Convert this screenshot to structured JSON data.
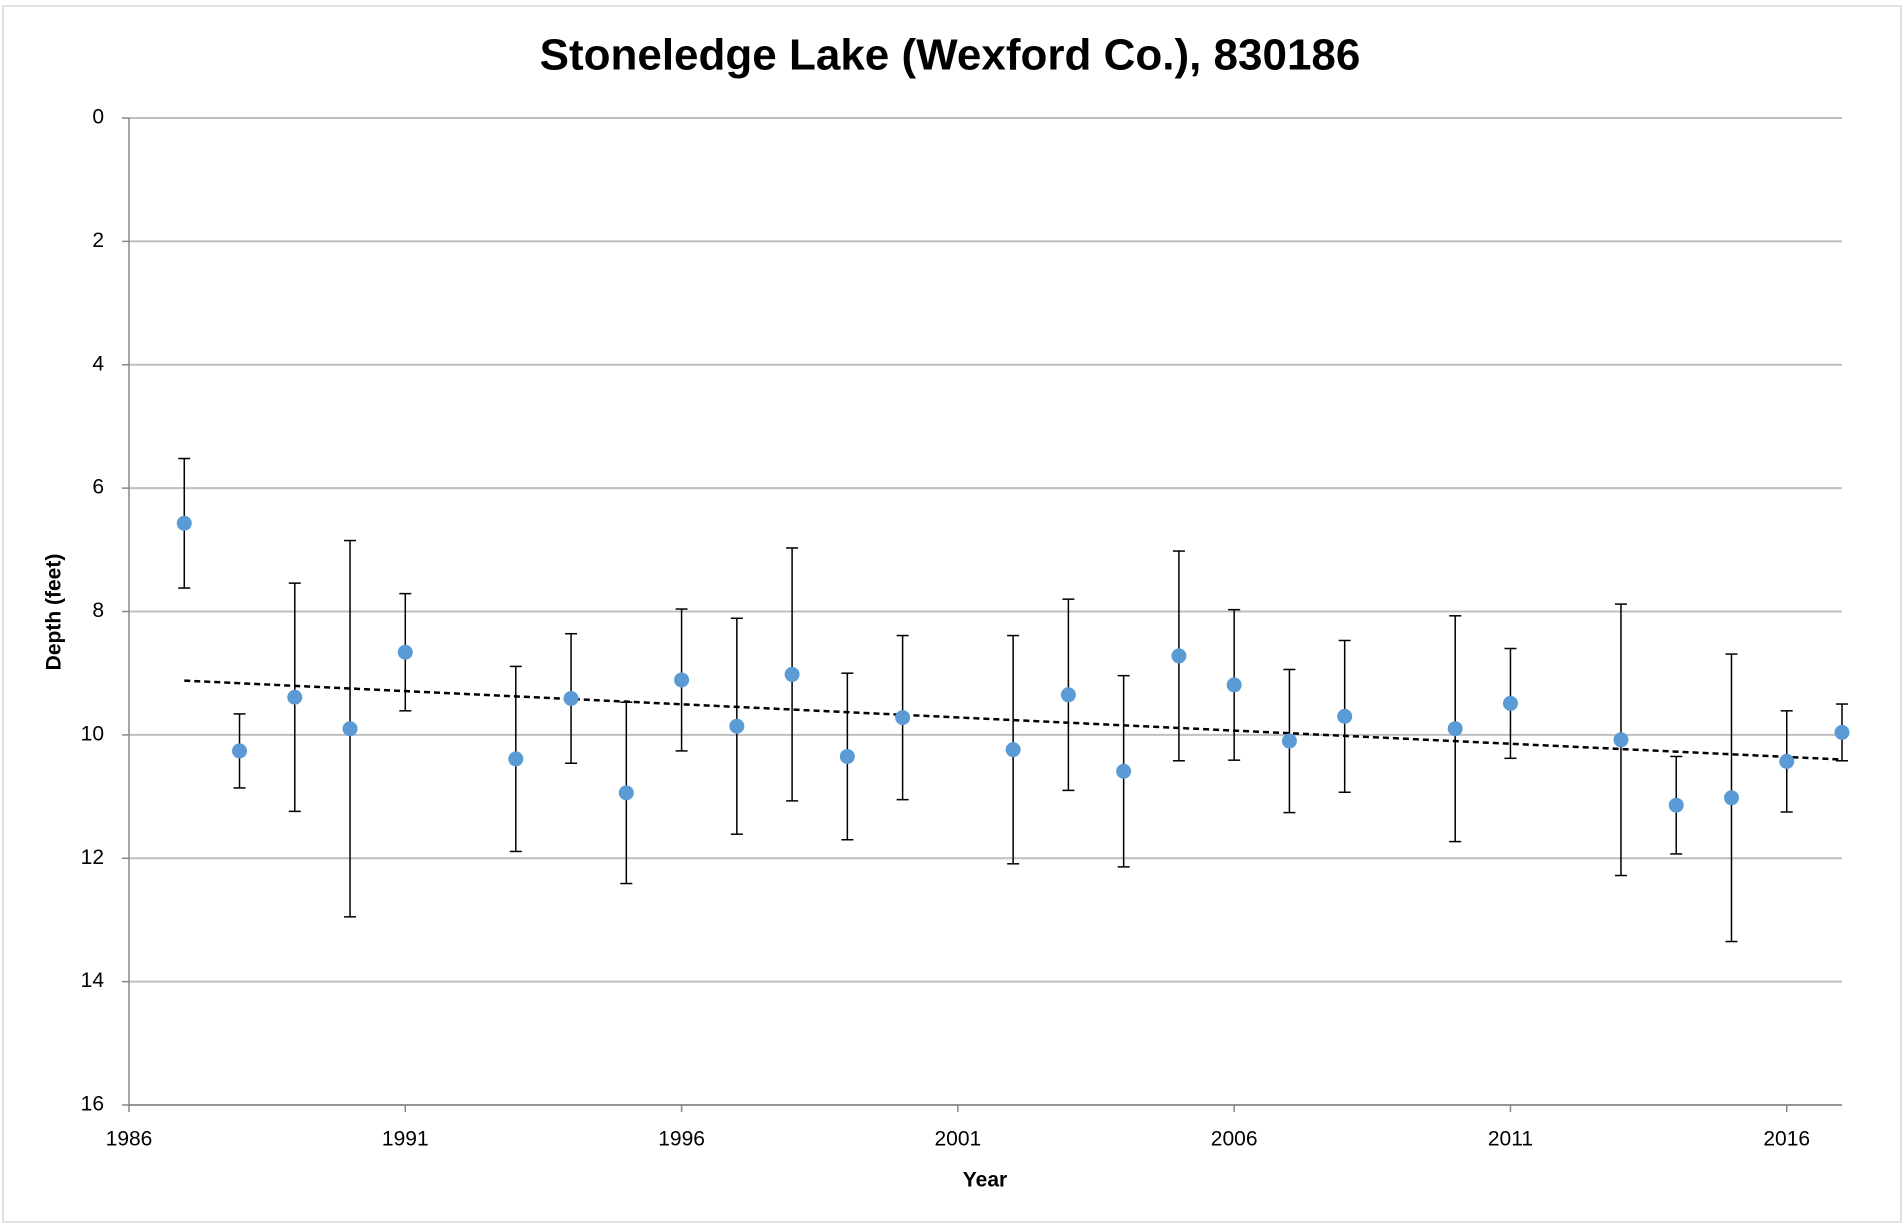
{
  "chart_data": {
    "type": "scatter",
    "title": "Stoneledge Lake (Wexford Co.), 830186",
    "x_label": "Year",
    "y_label": "Depth (feet)",
    "x": [
      1987,
      1988,
      1989,
      1990,
      1991,
      1993,
      1994,
      1995,
      1996,
      1997,
      1998,
      1999,
      2000,
      2002,
      2003,
      2004,
      2005,
      2006,
      2007,
      2008,
      2010,
      2011,
      2013,
      2014,
      2015,
      2016,
      2017
    ],
    "values": [
      6.57,
      10.26,
      9.39,
      9.9,
      8.66,
      10.39,
      9.41,
      10.94,
      9.11,
      9.86,
      9.02,
      10.35,
      9.72,
      10.24,
      9.35,
      10.59,
      8.72,
      9.19,
      10.1,
      9.7,
      9.9,
      9.49,
      10.08,
      11.14,
      11.02,
      10.43,
      9.96
    ],
    "errors": [
      1.05,
      0.6,
      1.85,
      3.05,
      0.95,
      1.5,
      1.05,
      1.47,
      1.15,
      1.75,
      2.05,
      1.35,
      1.33,
      1.85,
      1.55,
      1.55,
      1.7,
      1.22,
      1.16,
      1.23,
      1.83,
      0.89,
      2.2,
      0.79,
      2.33,
      0.82,
      0.46
    ],
    "color": "#5b9bd5",
    "trendline": {
      "x": [
        1987,
        2017
      ],
      "values": [
        9.12,
        10.4
      ],
      "color": "#000000"
    },
    "xlim": [
      1986,
      2017
    ],
    "xticks": [
      1986,
      1991,
      1996,
      2001,
      2006,
      2011,
      2016
    ],
    "ylim": [
      0,
      16
    ],
    "yticks": [
      0,
      2,
      4,
      6,
      8,
      10,
      12,
      14,
      16
    ],
    "y_reversed": true,
    "grid": true
  }
}
